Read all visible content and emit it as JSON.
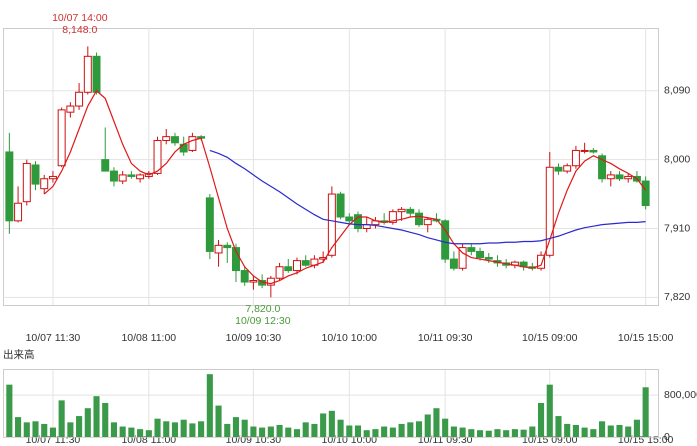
{
  "chart_data": [
    {
      "type": "candlestick",
      "categories": [
        null,
        null,
        null,
        null,
        null,
        "10/07 11:30",
        null,
        null,
        null,
        null,
        null,
        null,
        null,
        null,
        null,
        null,
        "10/08 11:00",
        null,
        null,
        null,
        null,
        null,
        null,
        null,
        null,
        null,
        null,
        null,
        "10/09 10:30",
        null,
        null,
        null,
        null,
        null,
        null,
        null,
        null,
        null,
        null,
        "10/10 10:00",
        null,
        null,
        null,
        null,
        null,
        null,
        null,
        null,
        null,
        null,
        "10/11 09:30",
        null,
        null,
        null,
        null,
        null,
        null,
        null,
        null,
        null,
        null,
        null,
        "10/15 09:00",
        null,
        null,
        null,
        null,
        null,
        null,
        null,
        null,
        null,
        null,
        "10/15 15:00"
      ],
      "open": [
        8010,
        7920,
        7945,
        7993,
        7962,
        7975,
        7992,
        8062,
        8070,
        8088,
        8135,
        8000,
        7985,
        7972,
        7980,
        7975,
        7978,
        7982,
        8025,
        8030,
        8020,
        8012,
        8030,
        7950,
        7878,
        7888,
        7885,
        7855,
        7840,
        7842,
        7836,
        7845,
        7860,
        7855,
        7868,
        7862,
        7870,
        7875,
        7955,
        7925,
        7928,
        7910,
        7915,
        7920,
        7918,
        7932,
        7935,
        7930,
        7915,
        7922,
        7920,
        7870,
        7858,
        7885,
        7880,
        7872,
        7868,
        7865,
        7862,
        7866,
        7860,
        7858,
        7875,
        7990,
        7985,
        7992,
        8012,
        8012,
        8005,
        7975,
        7980,
        7975,
        7978,
        7972
      ],
      "high": [
        8035,
        7965,
        8000,
        7998,
        7980,
        7985,
        8068,
        8075,
        8100,
        8148,
        8140,
        8042,
        7990,
        7985,
        7985,
        7982,
        7985,
        8030,
        8040,
        8035,
        8030,
        8035,
        8032,
        7955,
        7895,
        7892,
        7890,
        7860,
        7848,
        7850,
        7848,
        7865,
        7870,
        7872,
        7875,
        7875,
        7880,
        7965,
        7958,
        7930,
        7932,
        7925,
        7925,
        7930,
        7935,
        7938,
        7938,
        7935,
        7925,
        7930,
        7922,
        7880,
        7890,
        7890,
        7885,
        7878,
        7875,
        7870,
        7868,
        7868,
        7865,
        7880,
        8010,
        7995,
        7995,
        8018,
        8022,
        8015,
        8008,
        7985,
        7985,
        7982,
        7985,
        7978
      ],
      "low": [
        7903,
        7918,
        7940,
        7960,
        7955,
        7970,
        7990,
        8055,
        8065,
        8085,
        8085,
        7985,
        7965,
        7968,
        7975,
        7970,
        7975,
        7980,
        8020,
        8018,
        8005,
        8010,
        8025,
        7870,
        7860,
        7865,
        7840,
        7835,
        7830,
        7832,
        7820,
        7842,
        7852,
        7850,
        7860,
        7858,
        7865,
        7872,
        7922,
        7915,
        7905,
        7905,
        7910,
        7915,
        7915,
        7920,
        7925,
        7912,
        7905,
        7918,
        7865,
        7855,
        7855,
        7875,
        7868,
        7865,
        7860,
        7858,
        7858,
        7855,
        7855,
        7855,
        7872,
        7980,
        7982,
        7988,
        8008,
        8008,
        7970,
        7965,
        7972,
        7970,
        7970,
        7935
      ],
      "close": [
        7920,
        7943,
        7995,
        7968,
        7975,
        7978,
        8065,
        8070,
        8088,
        8135,
        8088,
        7985,
        7972,
        7980,
        7978,
        7980,
        7982,
        8025,
        8030,
        8022,
        8010,
        8030,
        8028,
        7880,
        7888,
        7885,
        7855,
        7840,
        7842,
        7836,
        7845,
        7860,
        7855,
        7868,
        7862,
        7870,
        7872,
        7955,
        7925,
        7920,
        7910,
        7915,
        7920,
        7918,
        7932,
        7935,
        7930,
        7915,
        7922,
        7920,
        7870,
        7858,
        7885,
        7880,
        7872,
        7870,
        7865,
        7862,
        7866,
        7860,
        7858,
        7875,
        7990,
        7985,
        7992,
        8012,
        8012,
        8010,
        7975,
        7980,
        7975,
        7978,
        7972,
        7940
      ],
      "up_color": "#cc1111",
      "down_color": "#2e9a3c",
      "lines": [
        {
          "color": "#e01818",
          "values": [
            null,
            null,
            null,
            null,
            7955,
            7965,
            7985,
            8010,
            8040,
            8070,
            8090,
            8080,
            8050,
            8020,
            7995,
            7985,
            7980,
            7985,
            7995,
            8010,
            8020,
            8025,
            8028,
            7990,
            7950,
            7910,
            7880,
            7860,
            7848,
            7840,
            7838,
            7842,
            7848,
            7852,
            7858,
            7862,
            7866,
            7885,
            7900,
            7915,
            7925,
            7925,
            7920,
            7918,
            7920,
            7922,
            7925,
            7926,
            7924,
            7922,
            7908,
            7890,
            7878,
            7872,
            7870,
            7868,
            7866,
            7864,
            7862,
            7860,
            7858,
            7862,
            7895,
            7930,
            7960,
            7985,
            7998,
            8005,
            8000,
            7995,
            7988,
            7982,
            7975,
            7960
          ]
        },
        {
          "color": "#2a2ad0",
          "values": [
            null,
            null,
            null,
            null,
            null,
            null,
            null,
            null,
            null,
            null,
            null,
            null,
            null,
            null,
            null,
            null,
            null,
            null,
            null,
            null,
            null,
            null,
            null,
            8012,
            8008,
            8003,
            7995,
            7988,
            7980,
            7972,
            7965,
            7958,
            7950,
            7942,
            7935,
            7928,
            7922,
            7920,
            7918,
            7916,
            7915,
            7915,
            7914,
            7912,
            7910,
            7908,
            7905,
            7902,
            7898,
            7895,
            7892,
            7890,
            7890,
            7890,
            7890,
            7891,
            7891,
            7892,
            7892,
            7893,
            7893,
            7894,
            7897,
            7900,
            7904,
            7908,
            7911,
            7913,
            7915,
            7916,
            7917,
            7918,
            7918,
            7919
          ]
        }
      ],
      "annotations": [
        {
          "index": 9,
          "time": "10/07 14:00",
          "value": 8148,
          "label": "8,148.0",
          "color": "#d03030",
          "side": "top"
        },
        {
          "index": 30,
          "time": "10/09 12:30",
          "value": 7820,
          "label": "7,820.0",
          "color": "#4a9a3a",
          "side": "bottom"
        }
      ],
      "ylim": [
        7810,
        8172
      ],
      "yticks": [
        {
          "value": 7820,
          "label": "7,820"
        },
        {
          "value": 7910,
          "label": "7,910"
        },
        {
          "value": 8000,
          "label": "8,000"
        },
        {
          "value": 8090,
          "label": "8,090"
        }
      ],
      "grid": true
    },
    {
      "type": "bar",
      "title": "出来高",
      "categories": [
        null,
        null,
        null,
        null,
        null,
        "10/07 11:30",
        null,
        null,
        null,
        null,
        null,
        null,
        null,
        null,
        null,
        null,
        "10/08 11:00",
        null,
        null,
        null,
        null,
        null,
        null,
        null,
        null,
        null,
        null,
        null,
        "10/09 10:30",
        null,
        null,
        null,
        null,
        null,
        null,
        null,
        null,
        null,
        null,
        "10/10 10:00",
        null,
        null,
        null,
        null,
        null,
        null,
        null,
        null,
        null,
        null,
        "10/11 09:30",
        null,
        null,
        null,
        null,
        null,
        null,
        null,
        null,
        null,
        null,
        null,
        "10/15 09:00",
        null,
        null,
        null,
        null,
        null,
        null,
        null,
        null,
        null,
        null,
        "10/15 15:00"
      ],
      "values": [
        1000000,
        380000,
        280000,
        300000,
        250000,
        180000,
        700000,
        280000,
        400000,
        550000,
        780000,
        650000,
        280000,
        200000,
        180000,
        150000,
        130000,
        350000,
        300000,
        280000,
        330000,
        260000,
        300000,
        1200000,
        600000,
        250000,
        380000,
        330000,
        200000,
        180000,
        200000,
        230000,
        180000,
        150000,
        280000,
        250000,
        450000,
        500000,
        330000,
        220000,
        220000,
        130000,
        150000,
        200000,
        180000,
        250000,
        280000,
        300000,
        430000,
        550000,
        350000,
        200000,
        180000,
        150000,
        130000,
        120000,
        150000,
        130000,
        150000,
        140000,
        200000,
        650000,
        1000000,
        400000,
        250000,
        230000,
        180000,
        150000,
        300000,
        220000,
        230000,
        200000,
        330000,
        950000
      ],
      "color": "#3a9a4a",
      "ylim": [
        0,
        1280000
      ],
      "yticks": [
        0,
        {
          "value": 800000,
          "label": "800,000"
        }
      ],
      "grid": true
    }
  ]
}
